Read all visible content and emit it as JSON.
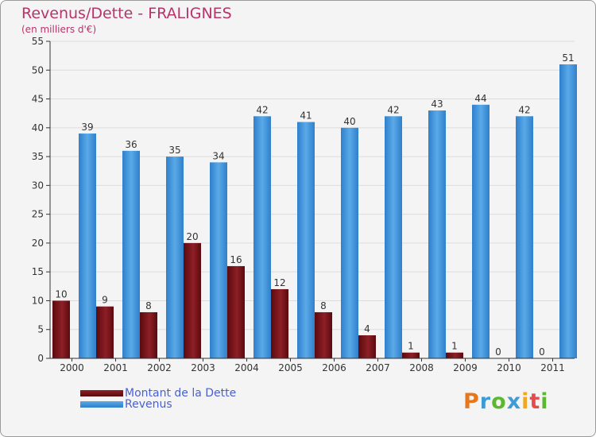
{
  "chart_data": {
    "type": "bar",
    "title": "Revenus/Dette - FRALIGNES",
    "subtitle": "(en milliers d'€)",
    "xlabel": "",
    "ylabel": "",
    "categories": [
      "2000",
      "2001",
      "2002",
      "2003",
      "2004",
      "2005",
      "2006",
      "2007",
      "2008",
      "2009",
      "2010",
      "2011"
    ],
    "series": [
      {
        "name": "Montant de la Dette",
        "color": "#6e0f14",
        "values": [
          10,
          9,
          8,
          20,
          16,
          12,
          8,
          4,
          1,
          1,
          0,
          0
        ]
      },
      {
        "name": "Revenus",
        "color": "#3d8fd6",
        "values": [
          39,
          36,
          35,
          34,
          42,
          41,
          40,
          42,
          43,
          44,
          42,
          51
        ]
      }
    ],
    "yticks": [
      "0",
      "5",
      "10",
      "15",
      "20",
      "25",
      "30",
      "35",
      "40",
      "45",
      "50",
      "55"
    ],
    "ylim": [
      0,
      55
    ],
    "grid": "horizontal",
    "legend": "bottom-left"
  },
  "logo": {
    "letters": [
      "P",
      "r",
      "o",
      "x",
      "i",
      "t",
      "i"
    ],
    "colors": [
      "#e8771c",
      "#3d9bd6",
      "#5cb82e",
      "#3d9bd6",
      "#f0a820",
      "#e64b4b",
      "#5cb82e"
    ]
  }
}
